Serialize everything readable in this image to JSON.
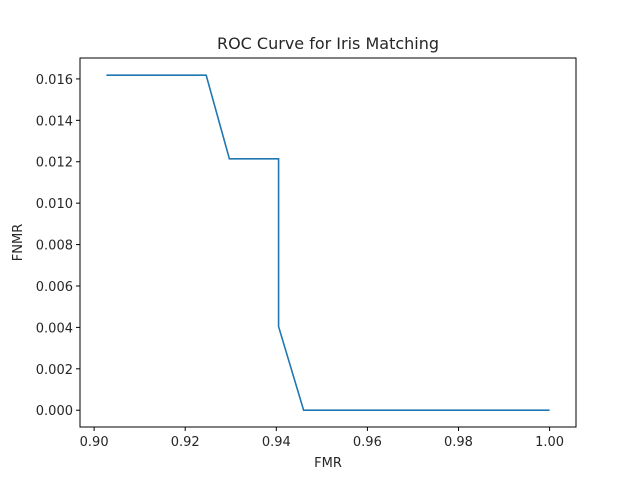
{
  "chart_data": {
    "type": "line",
    "title": "ROC Curve for Iris Matching",
    "xlabel": "FMR",
    "ylabel": "FNMR",
    "xlim": [
      0.8969,
      1.0058
    ],
    "ylim": [
      -0.00081,
      0.01701
    ],
    "xticks": [
      0.9,
      0.92,
      0.94,
      0.96,
      0.98,
      1.0
    ],
    "xtick_labels": [
      "0.90",
      "0.92",
      "0.94",
      "0.96",
      "0.98",
      "1.00"
    ],
    "yticks": [
      0.0,
      0.002,
      0.004,
      0.006,
      0.008,
      0.01,
      0.012,
      0.014,
      0.016
    ],
    "ytick_labels": [
      "0.000",
      "0.002",
      "0.004",
      "0.006",
      "0.008",
      "0.010",
      "0.012",
      "0.014",
      "0.016"
    ],
    "grid": false,
    "series": [
      {
        "color": "#1f77b4",
        "x": [
          0.9027,
          0.9246,
          0.9297,
          0.9405,
          0.9405,
          0.946,
          1.0
        ],
        "y": [
          0.01618,
          0.01618,
          0.01214,
          0.01214,
          0.00404,
          0.0,
          0.0
        ]
      }
    ]
  }
}
